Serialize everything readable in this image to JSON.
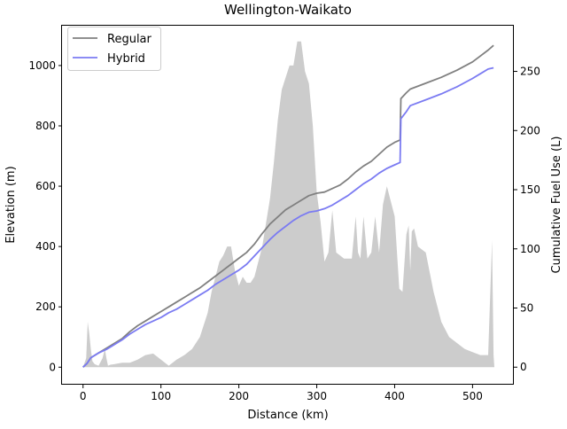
{
  "chart_data": {
    "type": "line",
    "title": "Wellington-Waikato",
    "xlabel": "Distance (km)",
    "ylabel": "Elevation (m)",
    "y2label": "Cumulative Fuel Use (L)",
    "xlim": [
      -27,
      553
    ],
    "ylim": [
      -58,
      1132
    ],
    "y2lim": [
      -14.8,
      288.6
    ],
    "x_ticks": [
      0,
      100,
      200,
      300,
      400,
      500
    ],
    "y_ticks": [
      0,
      200,
      400,
      600,
      800,
      1000
    ],
    "y2_ticks": [
      0,
      50,
      100,
      150,
      200,
      250
    ],
    "grid": false,
    "legend_position": "top-left",
    "elevation": {
      "color": "#cccccc",
      "x": [
        0,
        4,
        6,
        8,
        10,
        12,
        15,
        20,
        25,
        28,
        30,
        32,
        35,
        40,
        50,
        60,
        70,
        80,
        90,
        100,
        110,
        120,
        130,
        140,
        150,
        160,
        165,
        170,
        175,
        180,
        185,
        190,
        195,
        200,
        205,
        210,
        215,
        220,
        225,
        230,
        235,
        240,
        245,
        250,
        255,
        260,
        265,
        270,
        275,
        280,
        285,
        290,
        295,
        300,
        305,
        310,
        315,
        320,
        325,
        330,
        335,
        340,
        345,
        350,
        353,
        356,
        360,
        365,
        370,
        375,
        380,
        385,
        390,
        395,
        400,
        403,
        406,
        410,
        415,
        418,
        420,
        422,
        425,
        430,
        440,
        450,
        460,
        470,
        480,
        490,
        500,
        510,
        520,
        525,
        527,
        528
      ],
      "y": [
        0,
        30,
        150,
        110,
        60,
        20,
        10,
        5,
        30,
        60,
        30,
        5,
        8,
        10,
        15,
        15,
        25,
        40,
        45,
        25,
        5,
        25,
        40,
        60,
        100,
        180,
        250,
        300,
        350,
        370,
        400,
        400,
        320,
        270,
        300,
        280,
        280,
        300,
        350,
        400,
        480,
        560,
        680,
        820,
        920,
        960,
        1000,
        1000,
        1080,
        1080,
        980,
        940,
        800,
        580,
        480,
        350,
        380,
        520,
        380,
        370,
        360,
        360,
        360,
        500,
        380,
        360,
        500,
        360,
        380,
        500,
        380,
        540,
        600,
        550,
        500,
        380,
        260,
        250,
        440,
        470,
        320,
        450,
        460,
        400,
        380,
        250,
        150,
        100,
        80,
        60,
        50,
        40,
        40,
        420,
        40,
        0
      ]
    },
    "series": [
      {
        "name": "Regular",
        "color": "#808080",
        "x": [
          0,
          5,
          10,
          20,
          30,
          40,
          50,
          60,
          70,
          80,
          90,
          100,
          110,
          120,
          130,
          140,
          150,
          160,
          170,
          180,
          190,
          200,
          210,
          220,
          230,
          240,
          250,
          260,
          270,
          280,
          290,
          300,
          310,
          320,
          330,
          340,
          350,
          360,
          370,
          380,
          390,
          400,
          407,
          408,
          415,
          420,
          440,
          460,
          480,
          500,
          510,
          520,
          527
        ],
        "y": [
          0,
          3,
          8,
          12,
          16,
          20,
          24,
          30,
          35,
          39,
          43,
          47,
          51,
          55,
          59,
          63,
          67,
          72,
          77,
          82,
          87,
          92,
          97,
          104,
          113,
          121,
          127,
          133,
          137,
          141,
          145,
          147,
          148,
          151,
          154,
          159,
          165,
          170,
          174,
          180,
          186,
          190,
          192,
          227,
          232,
          235,
          240,
          245,
          251,
          258,
          263,
          268,
          272
        ]
      },
      {
        "name": "Hybrid",
        "color": "#7b7bf2",
        "x": [
          0,
          5,
          10,
          20,
          30,
          40,
          50,
          60,
          70,
          80,
          90,
          100,
          110,
          120,
          130,
          140,
          150,
          160,
          170,
          180,
          190,
          200,
          210,
          220,
          230,
          240,
          250,
          260,
          270,
          280,
          290,
          300,
          310,
          320,
          330,
          340,
          350,
          360,
          370,
          380,
          390,
          400,
          407,
          408,
          415,
          420,
          440,
          460,
          480,
          500,
          510,
          520,
          527
        ],
        "y": [
          0,
          3,
          8,
          12,
          15,
          19,
          23,
          28,
          32,
          36,
          39,
          42,
          46,
          49,
          53,
          57,
          61,
          65,
          70,
          74,
          78,
          82,
          87,
          94,
          101,
          108,
          114,
          119,
          124,
          128,
          131,
          132,
          134,
          137,
          141,
          145,
          150,
          155,
          159,
          164,
          168,
          171,
          173,
          210,
          216,
          221,
          226,
          231,
          237,
          244,
          248,
          252,
          253
        ]
      }
    ]
  }
}
